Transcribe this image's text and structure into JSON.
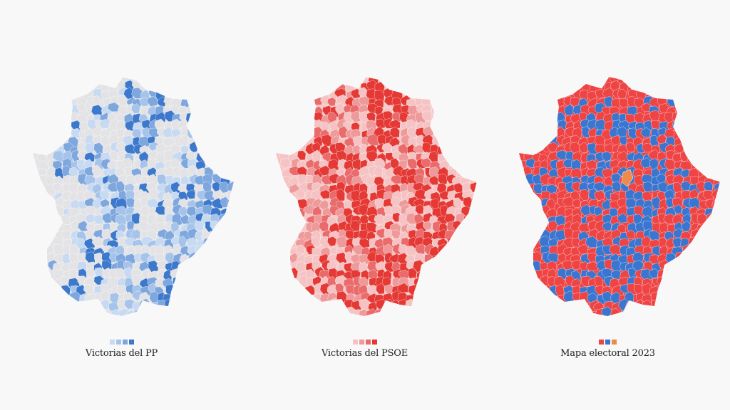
{
  "maps": [
    {
      "id": "pp",
      "caption": "Victorias del PP",
      "base_color": "#e3e3e6",
      "legend_colors": [
        "#c7daf1",
        "#a6c4ea",
        "#7ea7de",
        "#3c78cc"
      ],
      "region_colors": [
        "#e3e3e6",
        "#e3e3e6",
        "#c7daf1",
        "#a6c4ea",
        "#7ea7de",
        "#3c78cc",
        "#e3e3e6"
      ]
    },
    {
      "id": "psoe",
      "caption": "Victorias del PSOE",
      "base_color": "#f6c9c9",
      "legend_colors": [
        "#f5c3c3",
        "#ef9a9a",
        "#ea6b6b",
        "#e53935"
      ],
      "region_colors": [
        "#f5c3c3",
        "#ef9a9a",
        "#ea6b6b",
        "#e53935",
        "#e53935",
        "#e53935",
        "#f5c3c3"
      ]
    },
    {
      "id": "electoral",
      "caption": "Mapa electoral 2023",
      "base_color": "#ee4444",
      "legend_colors": [
        "#ee4444",
        "#3a76cf",
        "#f08a4b"
      ],
      "region_colors": [
        "#ee4444",
        "#3a76cf",
        "#ee4444",
        "#3a76cf",
        "#ee4444",
        "#ee4444",
        "#3a76cf"
      ]
    }
  ]
}
